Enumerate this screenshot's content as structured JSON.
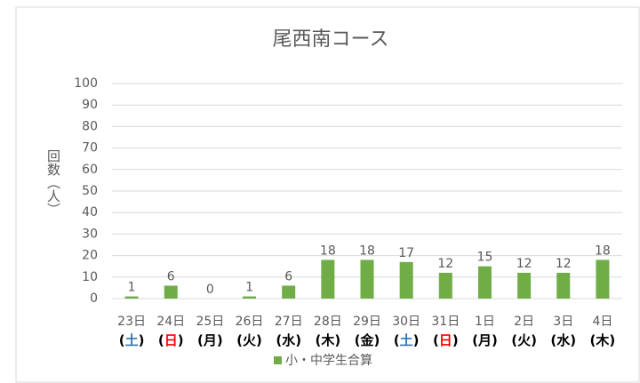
{
  "chart_data": {
    "type": "bar",
    "title": "尾西南コース",
    "y_label": "回数（人）",
    "categories": [
      "23日",
      "24日",
      "25日",
      "26日",
      "27日",
      "28日",
      "29日",
      "30日",
      "31日",
      "1日",
      "2日",
      "3日",
      "4日"
    ],
    "weekday_labels": [
      "(土)",
      "(日)",
      "(月)",
      "(火)",
      "(水)",
      "(木)",
      "(金)",
      "(土)",
      "(日)",
      "(月)",
      "(火)",
      "(水)",
      "(木)"
    ],
    "weekday_colors": [
      "#2e75b6",
      "#ff0000",
      "#000000",
      "#000000",
      "#000000",
      "#000000",
      "#000000",
      "#2e75b6",
      "#ff0000",
      "#000000",
      "#000000",
      "#000000",
      "#000000"
    ],
    "series": [
      {
        "name": "小・中学生合算",
        "color": "#70ad47",
        "values": [
          1,
          6,
          0,
          1,
          6,
          18,
          18,
          17,
          12,
          15,
          12,
          12,
          18
        ]
      }
    ],
    "ylim": [
      0,
      100
    ],
    "yticks": [
      0,
      10,
      20,
      30,
      40,
      50,
      60,
      70,
      80,
      90,
      100
    ],
    "grid": true,
    "legend": "bottom"
  }
}
